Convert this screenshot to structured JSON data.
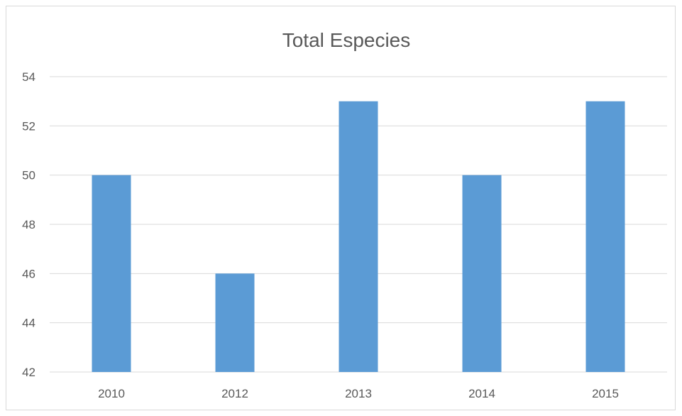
{
  "chart_data": {
    "type": "bar",
    "title": "Total Especies",
    "categories": [
      "2010",
      "2012",
      "2013",
      "2014",
      "2015"
    ],
    "values": [
      50,
      46,
      53,
      50,
      53
    ],
    "xlabel": "",
    "ylabel": "",
    "ylim": [
      42,
      54
    ],
    "yticks": [
      "42",
      "44",
      "46",
      "48",
      "50",
      "52",
      "54"
    ],
    "grid": true,
    "legend": "none",
    "bar_color": "#5b9bd5"
  }
}
